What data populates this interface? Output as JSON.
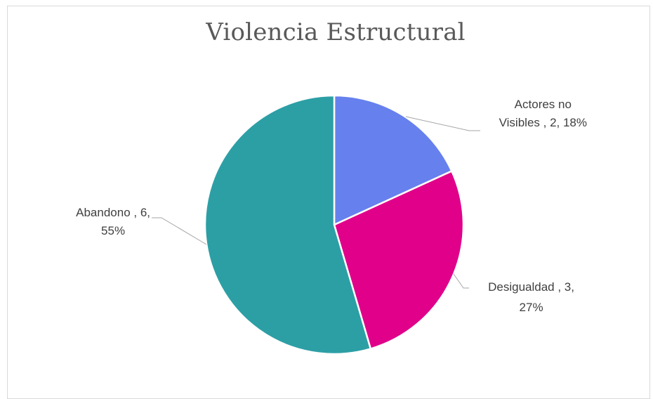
{
  "chart_data": {
    "type": "pie",
    "title": "Violencia Estructural",
    "series": [
      {
        "name": "",
        "slices": [
          {
            "label": "Actores no Visibles",
            "value": 2,
            "percent": "18%",
            "color": "#6680EE",
            "label_lines": [
              "Actores no",
              "Visibles  , 2, 18%"
            ]
          },
          {
            "label": "Desigualdad",
            "value": 3,
            "percent": "27%",
            "color": "#E0008A",
            "label_lines": [
              "Desigualdad  , 3,",
              "27%"
            ]
          },
          {
            "label": "Abandono",
            "value": 6,
            "percent": "55%",
            "color": "#2C9FA5",
            "label_lines": [
              "Abandono   , 6,",
              "55%"
            ]
          }
        ]
      }
    ],
    "legend": "none"
  }
}
